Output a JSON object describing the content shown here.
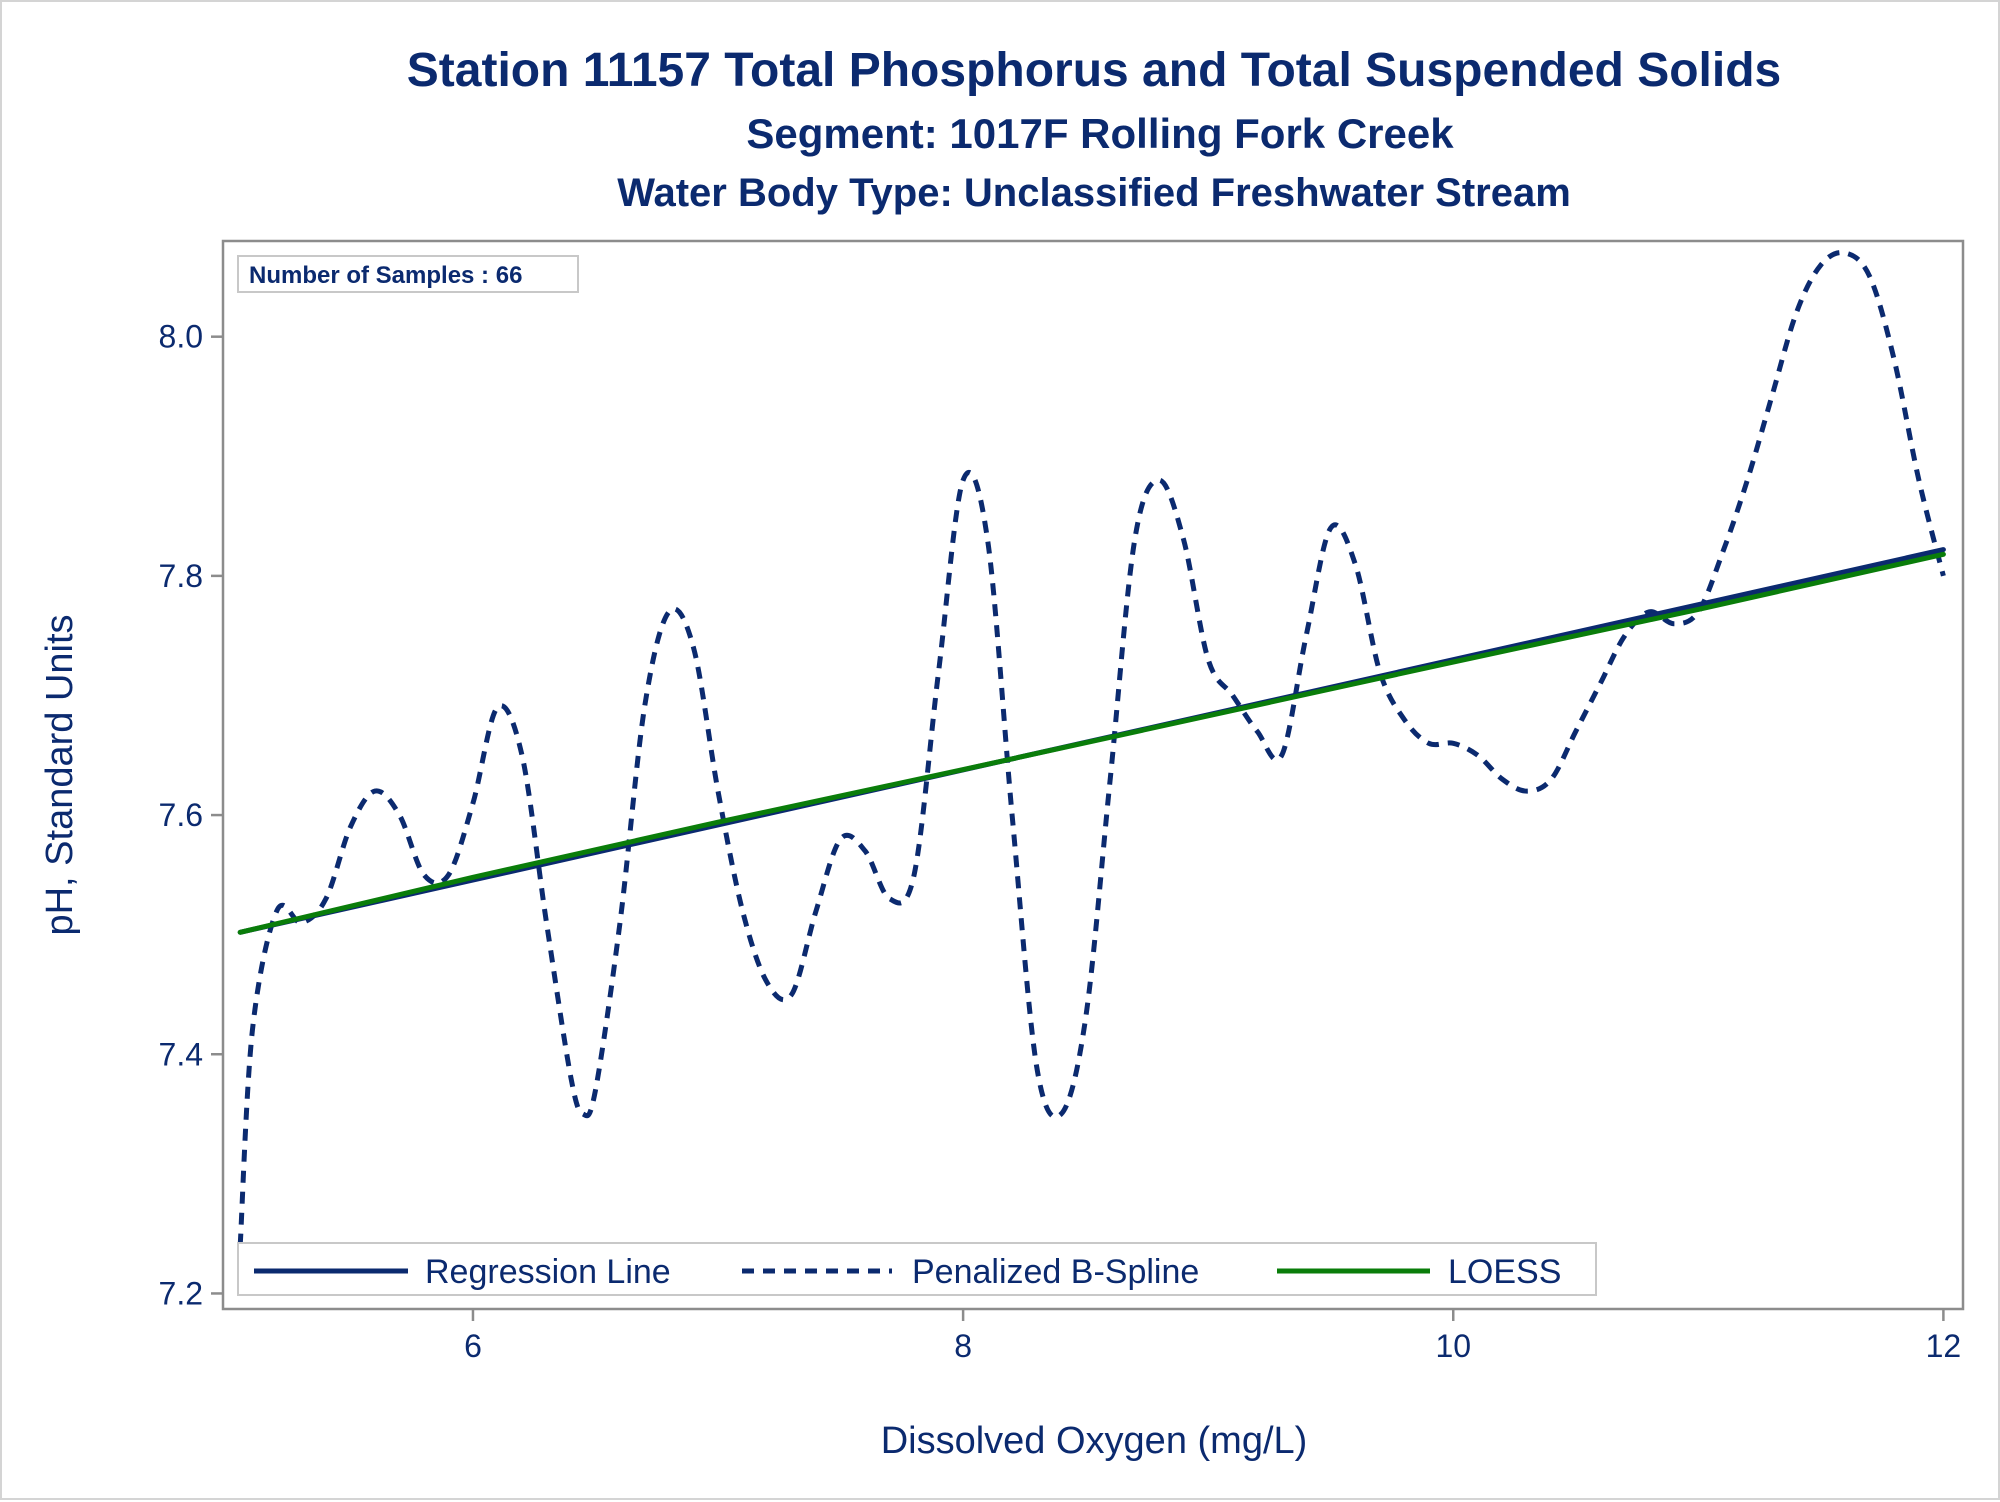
{
  "chart_data": {
    "type": "line",
    "title": "Station 11157  Total Phosphorus and Total Suspended Solids",
    "subtitle": "Segment: 1017F  Rolling Fork Creek",
    "subtitle2": "Water Body Type: Unclassified Freshwater Stream",
    "xlabel": "Dissolved Oxygen (mg/L)",
    "ylabel": "pH, Standard Units",
    "xlim": [
      4.98,
      12.08
    ],
    "ylim": [
      7.187,
      8.08
    ],
    "xticks": [
      6,
      8,
      10,
      12
    ],
    "yticks": [
      7.2,
      7.4,
      7.6,
      7.8,
      8.0
    ],
    "xtick_labels": [
      "6",
      "8",
      "10",
      "12"
    ],
    "ytick_labels": [
      "7.2",
      "7.4",
      "7.6",
      "7.8",
      "8.0"
    ],
    "grid": false,
    "inset": {
      "label": "Number of Samples : 66"
    },
    "legend": {
      "position": "bottom-left inside"
    },
    "series": [
      {
        "name": "Regression Line",
        "style": "solid",
        "color": "#0b2a6f",
        "x": [
          5.05,
          12.0
        ],
        "y": [
          7.502,
          7.822
        ]
      },
      {
        "name": "Penalized B-Spline",
        "style": "dashed",
        "color": "#0b2a6f",
        "x": [
          5.05,
          5.1,
          5.2,
          5.3,
          5.4,
          5.5,
          5.6,
          5.7,
          5.8,
          5.9,
          6.0,
          6.1,
          6.2,
          6.3,
          6.4,
          6.45,
          6.5,
          6.6,
          6.7,
          6.8,
          6.9,
          7.0,
          7.1,
          7.2,
          7.3,
          7.4,
          7.5,
          7.6,
          7.7,
          7.8,
          7.9,
          8.0,
          8.1,
          8.2,
          8.3,
          8.4,
          8.5,
          8.6,
          8.7,
          8.8,
          8.9,
          9.0,
          9.1,
          9.2,
          9.3,
          9.4,
          9.5,
          9.6,
          9.7,
          9.8,
          9.9,
          10.0,
          10.1,
          10.2,
          10.3,
          10.4,
          10.5,
          10.6,
          10.7,
          10.8,
          10.9,
          11.0,
          11.1,
          11.2,
          11.3,
          11.4,
          11.5,
          11.6,
          11.7,
          11.8,
          11.9,
          12.0
        ],
        "y": [
          7.24,
          7.42,
          7.52,
          7.51,
          7.53,
          7.59,
          7.62,
          7.6,
          7.55,
          7.55,
          7.61,
          7.69,
          7.65,
          7.51,
          7.38,
          7.35,
          7.37,
          7.51,
          7.69,
          7.77,
          7.74,
          7.62,
          7.52,
          7.46,
          7.45,
          7.52,
          7.58,
          7.57,
          7.53,
          7.55,
          7.72,
          7.88,
          7.83,
          7.6,
          7.39,
          7.35,
          7.43,
          7.63,
          7.83,
          7.88,
          7.83,
          7.73,
          7.7,
          7.67,
          7.65,
          7.75,
          7.84,
          7.81,
          7.72,
          7.68,
          7.66,
          7.66,
          7.65,
          7.63,
          7.62,
          7.63,
          7.67,
          7.71,
          7.75,
          7.77,
          7.76,
          7.77,
          7.82,
          7.88,
          7.95,
          8.02,
          8.06,
          8.07,
          8.05,
          7.98,
          7.88,
          7.8
        ]
      },
      {
        "name": "LOESS",
        "style": "solid",
        "color": "#0a7d0a",
        "x": [
          5.05,
          6.0,
          7.0,
          8.0,
          9.0,
          10.0,
          11.0,
          12.0
        ],
        "y": [
          7.502,
          7.548,
          7.594,
          7.638,
          7.683,
          7.728,
          7.772,
          7.818
        ]
      }
    ]
  }
}
